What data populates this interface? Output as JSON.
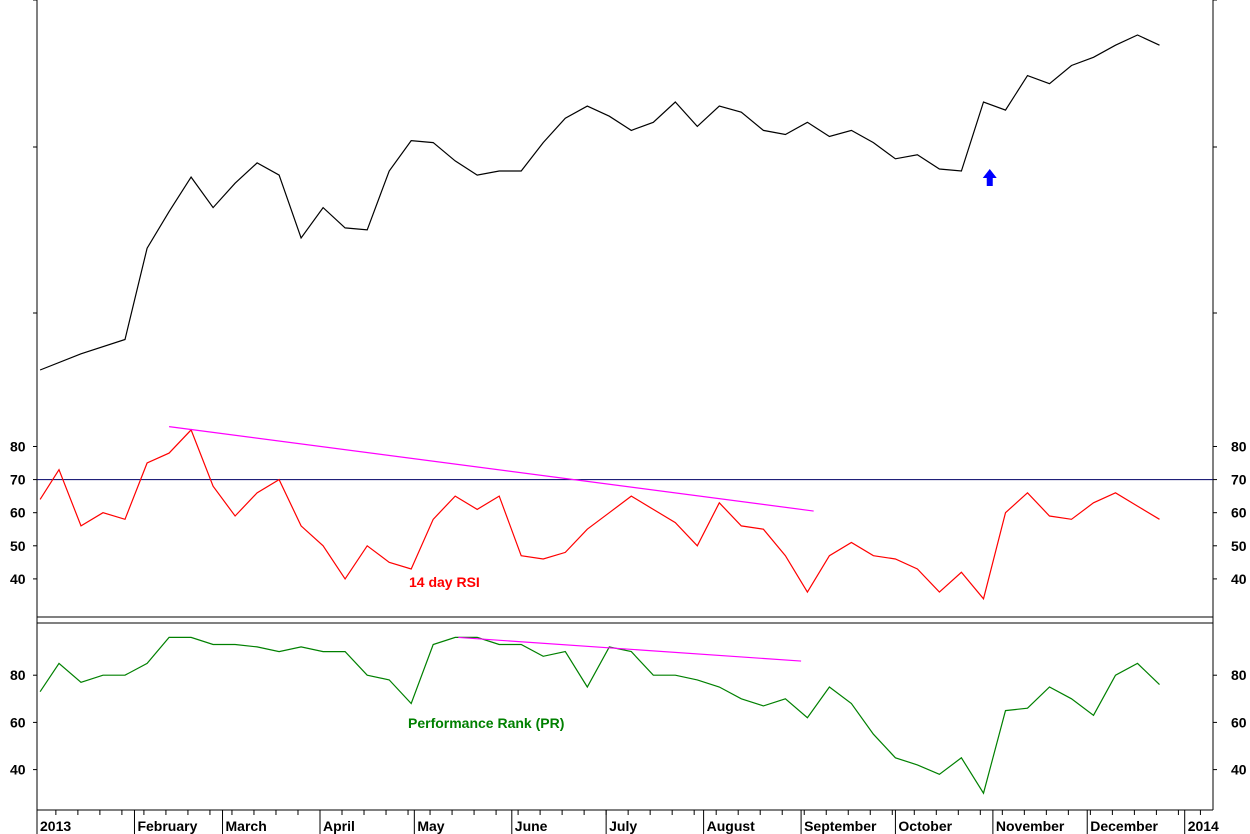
{
  "chart_data": [
    {
      "type": "line",
      "panel": "price",
      "series": [
        {
          "color": "#000000",
          "x": [
            "2013-01-02",
            "2013-01-15",
            "2013-01-29",
            "2013-02-05",
            "2013-02-12",
            "2013-02-19",
            "2013-02-26",
            "2013-03-05",
            "2013-03-12",
            "2013-03-19",
            "2013-03-26",
            "2013-04-02",
            "2013-04-09",
            "2013-04-16",
            "2013-04-23",
            "2013-04-30",
            "2013-05-07",
            "2013-05-14",
            "2013-05-21",
            "2013-05-28",
            "2013-06-04",
            "2013-06-11",
            "2013-06-18",
            "2013-06-25",
            "2013-07-02",
            "2013-07-09",
            "2013-07-16",
            "2013-07-23",
            "2013-07-30",
            "2013-08-06",
            "2013-08-13",
            "2013-08-20",
            "2013-08-27",
            "2013-09-03",
            "2013-09-10",
            "2013-09-17",
            "2013-09-24",
            "2013-10-01",
            "2013-10-08",
            "2013-10-15",
            "2013-10-22",
            "2013-10-29",
            "2013-11-05",
            "2013-11-12",
            "2013-11-19",
            "2013-11-26",
            "2013-12-03",
            "2013-12-10",
            "2013-12-17",
            "2013-12-24"
          ],
          "values": [
            0,
            8,
            15,
            60,
            78,
            95,
            80,
            92,
            102,
            96,
            65,
            80,
            70,
            69,
            98,
            113,
            112,
            103,
            96,
            98,
            98,
            112,
            124,
            130,
            125,
            118,
            122,
            132,
            120,
            130,
            127,
            118,
            116,
            122,
            115,
            118,
            112,
            104,
            106,
            99,
            98,
            132,
            128,
            145,
            141,
            150,
            154,
            160,
            165,
            160
          ]
        }
      ],
      "annotations": [
        {
          "type": "arrow-up",
          "x": "2013-10-31",
          "color": "#0000ff"
        }
      ]
    },
    {
      "type": "line",
      "panel": "rsi",
      "ylim": [
        30,
        88
      ],
      "yticks": [
        "40",
        "50",
        "60",
        "70",
        "80"
      ],
      "reference_line": 70,
      "series": [
        {
          "name": "14 day RSI",
          "color": "#ff0000",
          "x": [
            "2013-01-02",
            "2013-01-08",
            "2013-01-15",
            "2013-01-22",
            "2013-01-29",
            "2013-02-05",
            "2013-02-12",
            "2013-02-19",
            "2013-02-26",
            "2013-03-05",
            "2013-03-12",
            "2013-03-19",
            "2013-03-26",
            "2013-04-02",
            "2013-04-09",
            "2013-04-16",
            "2013-04-23",
            "2013-04-30",
            "2013-05-07",
            "2013-05-14",
            "2013-05-21",
            "2013-05-28",
            "2013-06-04",
            "2013-06-11",
            "2013-06-18",
            "2013-06-25",
            "2013-07-02",
            "2013-07-09",
            "2013-07-16",
            "2013-07-23",
            "2013-07-30",
            "2013-08-06",
            "2013-08-13",
            "2013-08-20",
            "2013-08-27",
            "2013-09-03",
            "2013-09-10",
            "2013-09-17",
            "2013-09-24",
            "2013-10-01",
            "2013-10-08",
            "2013-10-15",
            "2013-10-22",
            "2013-10-29",
            "2013-11-05",
            "2013-11-12",
            "2013-11-19",
            "2013-11-26",
            "2013-12-03",
            "2013-12-10",
            "2013-12-17",
            "2013-12-24"
          ],
          "values": [
            64,
            73,
            56,
            60,
            58,
            75,
            78,
            85,
            68,
            59,
            66,
            70,
            56,
            50,
            40,
            50,
            45,
            43,
            58,
            65,
            61,
            65,
            47,
            46,
            48,
            55,
            60,
            65,
            61,
            57,
            50,
            63,
            56,
            55,
            47,
            36,
            47,
            51,
            47,
            46,
            43,
            36,
            42,
            34,
            60,
            66,
            59,
            58,
            63,
            66,
            62,
            58
          ]
        }
      ],
      "trendline": {
        "color": "#ff00ff",
        "start": {
          "x": "2013-02-12",
          "y": 86
        },
        "end": {
          "x": "2013-09-05",
          "y": 60.5
        }
      },
      "label": "14 day RSI"
    },
    {
      "type": "line",
      "panel": "performance-rank",
      "ylim": [
        25,
        100
      ],
      "yticks": [
        "40",
        "60",
        "80"
      ],
      "series": [
        {
          "name": "Performance Rank (PR)",
          "color": "#008000",
          "x": [
            "2013-01-02",
            "2013-01-08",
            "2013-01-15",
            "2013-01-22",
            "2013-01-29",
            "2013-02-05",
            "2013-02-12",
            "2013-02-19",
            "2013-02-26",
            "2013-03-05",
            "2013-03-12",
            "2013-03-19",
            "2013-03-26",
            "2013-04-02",
            "2013-04-09",
            "2013-04-16",
            "2013-04-23",
            "2013-04-30",
            "2013-05-07",
            "2013-05-14",
            "2013-05-21",
            "2013-05-28",
            "2013-06-04",
            "2013-06-11",
            "2013-06-18",
            "2013-06-25",
            "2013-07-02",
            "2013-07-09",
            "2013-07-16",
            "2013-07-23",
            "2013-07-30",
            "2013-08-06",
            "2013-08-13",
            "2013-08-20",
            "2013-08-27",
            "2013-09-03",
            "2013-09-10",
            "2013-09-17",
            "2013-09-24",
            "2013-10-01",
            "2013-10-08",
            "2013-10-15",
            "2013-10-22",
            "2013-10-29",
            "2013-11-05",
            "2013-11-12",
            "2013-11-19",
            "2013-11-26",
            "2013-12-03",
            "2013-12-10",
            "2013-12-17",
            "2013-12-24"
          ],
          "values": [
            73,
            85,
            77,
            80,
            80,
            85,
            96,
            96,
            93,
            93,
            92,
            90,
            92,
            90,
            90,
            80,
            78,
            68,
            93,
            96,
            96,
            93,
            93,
            88,
            90,
            75,
            92,
            90,
            80,
            80,
            78,
            75,
            70,
            67,
            70,
            62,
            75,
            68,
            55,
            45,
            42,
            38,
            45,
            30,
            65,
            66,
            75,
            70,
            63,
            80,
            85,
            76
          ]
        }
      ],
      "trendline": {
        "color": "#ff00ff",
        "start": {
          "x": "2013-05-15",
          "y": 96
        },
        "end": {
          "x": "2013-09-01",
          "y": 86
        }
      },
      "label": "Performance Rank (PR)"
    }
  ],
  "x_axis": {
    "labels": [
      "2013",
      "February",
      "March",
      "April",
      "May",
      "June",
      "July",
      "August",
      "September",
      "October",
      "November",
      "December",
      "2014"
    ]
  }
}
